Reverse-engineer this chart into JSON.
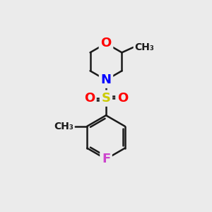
{
  "background_color": "#ebebeb",
  "bond_color": "#1a1a1a",
  "atom_colors": {
    "O": "#ff0000",
    "N": "#0000ff",
    "S": "#cccc00",
    "F": "#cc44cc",
    "C": "#1a1a1a"
  },
  "font_size_atoms": 13,
  "font_size_methyl": 10,
  "lw": 1.8
}
